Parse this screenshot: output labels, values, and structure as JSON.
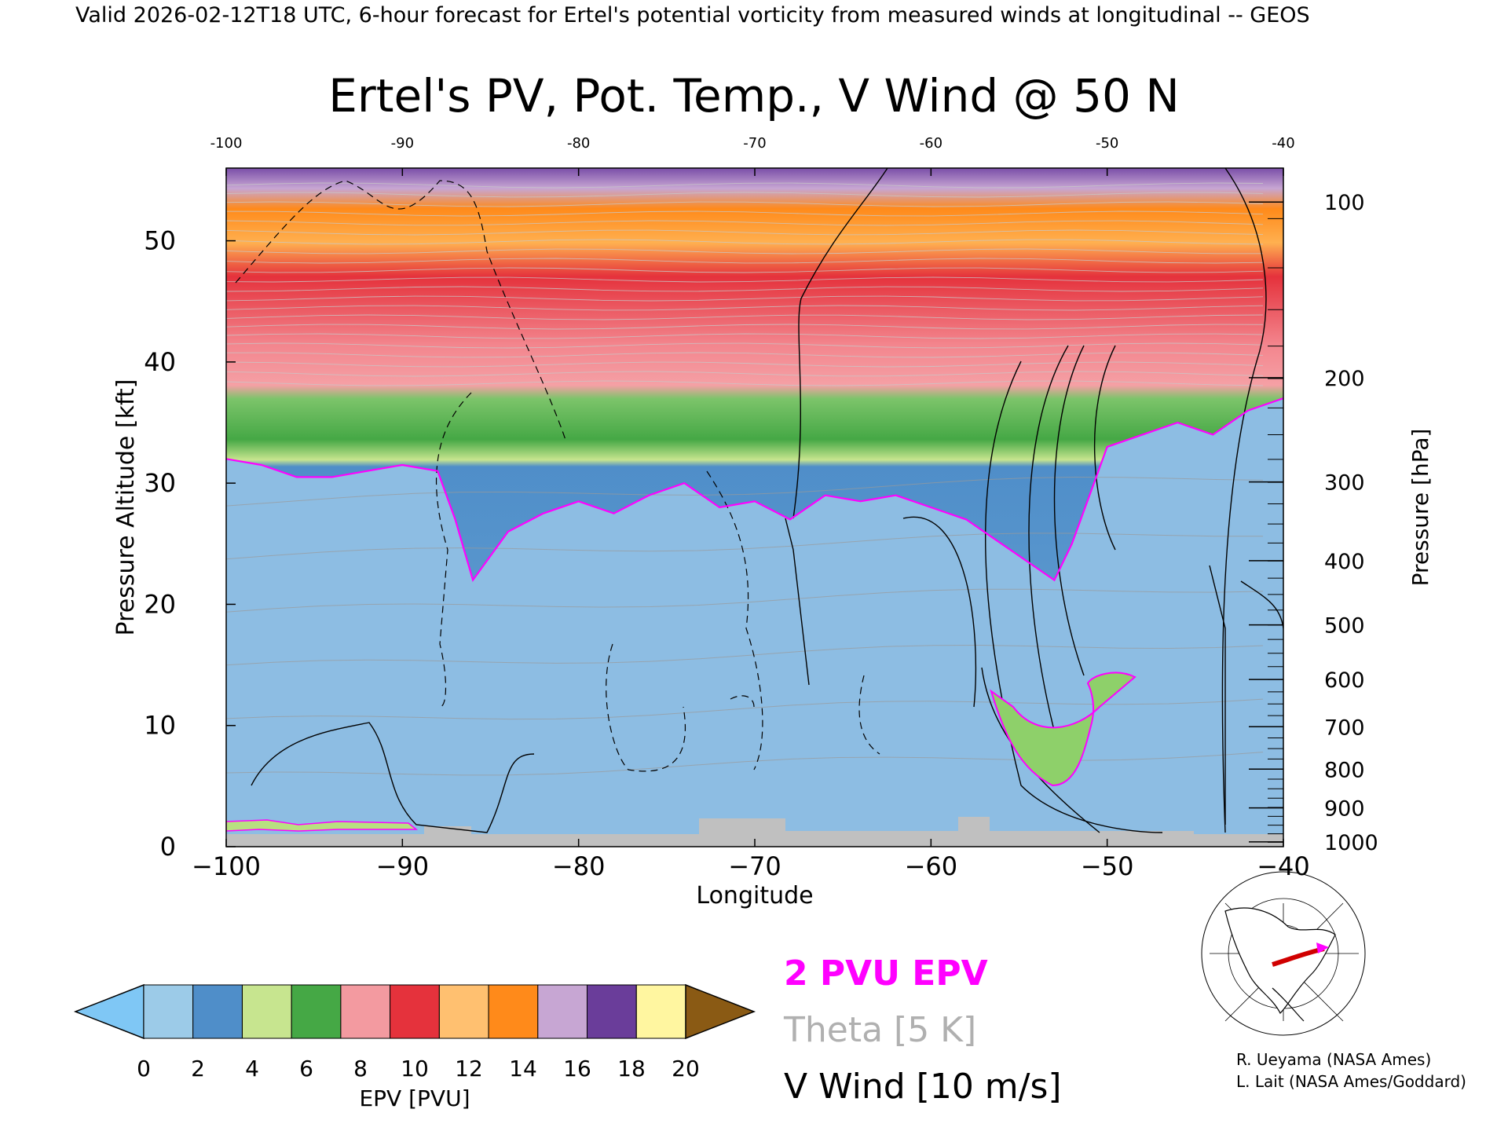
{
  "header": "Valid 2026-02-12T18 UTC, 6-hour forecast for Ertel's potential vorticity from measured winds at longitudinal -- GEOS",
  "chart_data": {
    "type": "heatmap",
    "title": "Ertel's PV, Pot. Temp., V Wind @ 50 N",
    "xlabel": "Longitude",
    "ylabel": "Pressure Altitude [kft]",
    "y2label": "Pressure [hPa]",
    "xlim": [
      -100,
      -40
    ],
    "ylim": [
      0,
      56
    ],
    "xticks": [
      -100,
      -90,
      -80,
      -70,
      -60,
      -50,
      -40
    ],
    "xtick_labels": [
      "−100",
      "−90",
      "−80",
      "−70",
      "−60",
      "−50",
      "−40"
    ],
    "top_xtick_labels": [
      "-100",
      "-90",
      "-80",
      "-70",
      "-60",
      "-50",
      "-40"
    ],
    "yticks": [
      0,
      10,
      20,
      30,
      40,
      50
    ],
    "pressure_ticks": [
      {
        "p": 100,
        "kft": 53.2
      },
      {
        "p": 200,
        "kft": 38.7
      },
      {
        "p": 300,
        "kft": 30.1
      },
      {
        "p": 400,
        "kft": 23.6
      },
      {
        "p": 500,
        "kft": 18.3
      },
      {
        "p": 600,
        "kft": 13.8
      },
      {
        "p": 700,
        "kft": 9.9
      },
      {
        "p": 800,
        "kft": 6.4
      },
      {
        "p": 900,
        "kft": 3.2
      },
      {
        "p": 1000,
        "kft": 0.4
      }
    ],
    "colorbar": {
      "label": "EPV [PVU]",
      "ticks": [
        0,
        2,
        4,
        6,
        8,
        10,
        12,
        14,
        16,
        18,
        20
      ],
      "under_color": "#7fc7f5",
      "over_color": "#8a5a14",
      "colors": [
        "#9ccbe8",
        "#4f8ec9",
        "#c7e58f",
        "#45a845",
        "#f39aa0",
        "#e5323c",
        "#ffc070",
        "#ff8a1a",
        "#c7a6d3",
        "#6a3d9a",
        "#fff6a0"
      ]
    },
    "pv2_tropopause": {
      "color": "#ff00ff",
      "x": [
        -100,
        -98,
        -96,
        -94,
        -92,
        -90,
        -88,
        -87,
        -86,
        -84,
        -82,
        -80,
        -78,
        -76,
        -74,
        -72,
        -70,
        -68,
        -66,
        -64,
        -62,
        -60,
        -58,
        -56,
        -54,
        -53,
        -52,
        -50,
        -48,
        -46,
        -44,
        -42,
        -40
      ],
      "y": [
        32,
        31.5,
        30.5,
        30.5,
        31,
        31.5,
        31,
        27,
        22,
        26,
        27.5,
        28.5,
        27.5,
        29,
        30,
        28,
        28.5,
        27,
        29,
        28.5,
        29,
        28,
        27,
        25,
        23,
        22,
        25,
        33,
        34,
        35,
        34,
        36,
        37
      ]
    },
    "theta_levels_K": [
      280,
      290,
      300,
      330,
      340,
      370,
      380,
      390,
      400,
      410,
      420
    ],
    "v_wind_levels": [
      -10,
      0,
      10,
      20,
      30,
      40,
      50
    ],
    "legend": [
      {
        "label": "2 PVU EPV",
        "color": "#ff00ff"
      },
      {
        "label": "Theta [5 K]",
        "color": "#b0b0b0"
      },
      {
        "label": "V Wind [10 m/s]",
        "color": "#000000"
      }
    ]
  },
  "credits": [
    "R. Ueyama (NASA Ames)",
    "L. Lait (NASA Ames/Goddard)"
  ]
}
